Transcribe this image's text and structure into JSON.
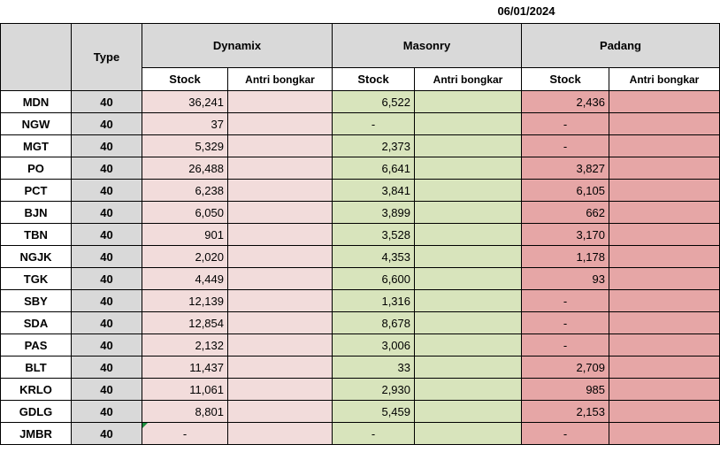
{
  "date": "06/01/2024",
  "headers": {
    "type": "Type",
    "groups": [
      "Dynamix",
      "Masonry",
      "Padang"
    ],
    "stock": "Stock",
    "antri": "Antri bongkar"
  },
  "rows": [
    {
      "kota": "MDN",
      "type": "40",
      "dynamix": "36,241",
      "masonry": "6,522",
      "padang": "2,436"
    },
    {
      "kota": "NGW",
      "type": "40",
      "dynamix": "37",
      "masonry": "-",
      "padang": "-"
    },
    {
      "kota": "MGT",
      "type": "40",
      "dynamix": "5,329",
      "masonry": "2,373",
      "padang": "-"
    },
    {
      "kota": "PO",
      "type": "40",
      "dynamix": "26,488",
      "masonry": "6,641",
      "padang": "3,827"
    },
    {
      "kota": "PCT",
      "type": "40",
      "dynamix": "6,238",
      "masonry": "3,841",
      "padang": "6,105"
    },
    {
      "kota": "BJN",
      "type": "40",
      "dynamix": "6,050",
      "masonry": "3,899",
      "padang": "662"
    },
    {
      "kota": "TBN",
      "type": "40",
      "dynamix": "901",
      "masonry": "3,528",
      "padang": "3,170"
    },
    {
      "kota": "NGJK",
      "type": "40",
      "dynamix": "2,020",
      "masonry": "4,353",
      "padang": "1,178"
    },
    {
      "kota": "TGK",
      "type": "40",
      "dynamix": "4,449",
      "masonry": "6,600",
      "padang": "93"
    },
    {
      "kota": "SBY",
      "type": "40",
      "dynamix": "12,139",
      "masonry": "1,316",
      "padang": "-"
    },
    {
      "kota": "SDA",
      "type": "40",
      "dynamix": "12,854",
      "masonry": "8,678",
      "padang": "-"
    },
    {
      "kota": "PAS",
      "type": "40",
      "dynamix": "2,132",
      "masonry": "3,006",
      "padang": "-"
    },
    {
      "kota": "BLT",
      "type": "40",
      "dynamix": "11,437",
      "masonry": "33",
      "padang": "2,709"
    },
    {
      "kota": "KRLO",
      "type": "40",
      "dynamix": "11,061",
      "masonry": "2,930",
      "padang": "985"
    },
    {
      "kota": "GDLG",
      "type": "40",
      "dynamix": "8,801",
      "masonry": "5,459",
      "padang": "2,153"
    },
    {
      "kota": "JMBR",
      "type": "40",
      "dynamix": "-",
      "masonry": "-",
      "padang": "-"
    }
  ],
  "colors": {
    "dynamix": "#f2dcdb",
    "masonry": "#d8e4bc",
    "padang": "#e6a6a6",
    "header": "#d9d9d9"
  }
}
